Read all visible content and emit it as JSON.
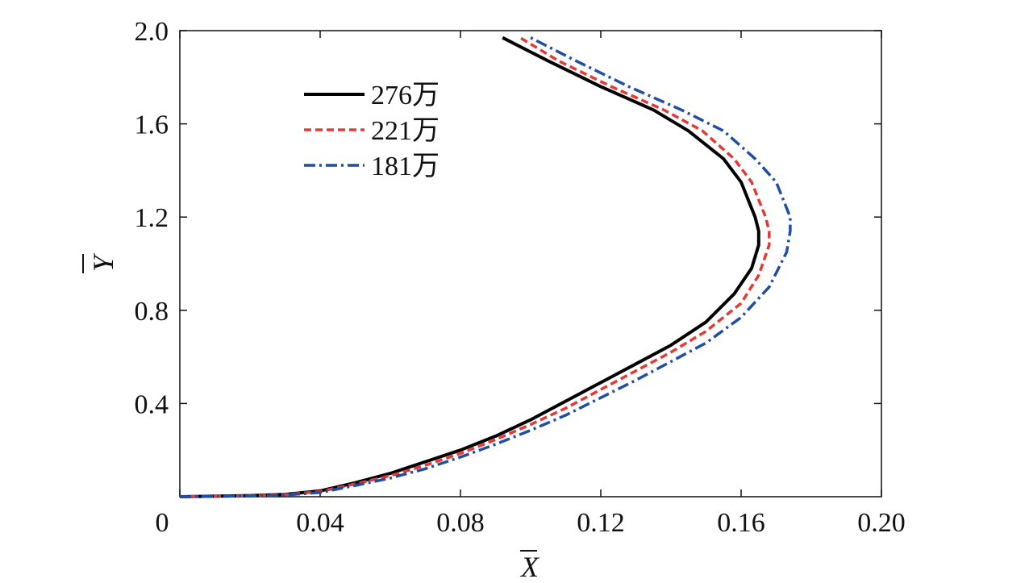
{
  "chart_data": {
    "type": "line",
    "title": "",
    "xlabel": "X",
    "ylabel": "Y",
    "xlim": [
      0,
      0.2
    ],
    "ylim": [
      0,
      2.0
    ],
    "x_ticks": [
      0,
      0.04,
      0.08,
      0.12,
      0.16,
      0.2
    ],
    "x_tick_labels": [
      "0",
      "0.04",
      "0.08",
      "0.12",
      "0.16",
      "0.20"
    ],
    "y_ticks": [
      0.4,
      0.8,
      1.2,
      1.6,
      2.0
    ],
    "y_tick_labels": [
      "0.4",
      "0.8",
      "1.2",
      "1.6",
      "2.0"
    ],
    "grid": false,
    "legend_position": "top-left",
    "series": [
      {
        "name": "276万",
        "color": "#000000",
        "style": "solid",
        "points": [
          [
            0.0,
            0.0
          ],
          [
            0.02,
            0.005
          ],
          [
            0.03,
            0.01
          ],
          [
            0.04,
            0.025
          ],
          [
            0.05,
            0.06
          ],
          [
            0.06,
            0.1
          ],
          [
            0.07,
            0.15
          ],
          [
            0.08,
            0.2
          ],
          [
            0.09,
            0.26
          ],
          [
            0.1,
            0.33
          ],
          [
            0.11,
            0.41
          ],
          [
            0.12,
            0.49
          ],
          [
            0.13,
            0.57
          ],
          [
            0.14,
            0.65
          ],
          [
            0.15,
            0.75
          ],
          [
            0.158,
            0.87
          ],
          [
            0.163,
            0.98
          ],
          [
            0.165,
            1.08
          ],
          [
            0.165,
            1.14
          ],
          [
            0.164,
            1.2
          ],
          [
            0.16,
            1.35
          ],
          [
            0.155,
            1.45
          ],
          [
            0.145,
            1.57
          ],
          [
            0.135,
            1.66
          ],
          [
            0.12,
            1.76
          ],
          [
            0.105,
            1.87
          ],
          [
            0.092,
            1.97
          ]
        ]
      },
      {
        "name": "221万",
        "color": "#e53935",
        "style": "dashed",
        "points": [
          [
            0.0,
            0.0
          ],
          [
            0.02,
            0.004
          ],
          [
            0.03,
            0.009
          ],
          [
            0.04,
            0.022
          ],
          [
            0.05,
            0.055
          ],
          [
            0.06,
            0.09
          ],
          [
            0.07,
            0.135
          ],
          [
            0.08,
            0.185
          ],
          [
            0.09,
            0.245
          ],
          [
            0.1,
            0.31
          ],
          [
            0.11,
            0.38
          ],
          [
            0.12,
            0.46
          ],
          [
            0.13,
            0.54
          ],
          [
            0.14,
            0.62
          ],
          [
            0.15,
            0.71
          ],
          [
            0.16,
            0.83
          ],
          [
            0.165,
            0.95
          ],
          [
            0.168,
            1.08
          ],
          [
            0.168,
            1.14
          ],
          [
            0.167,
            1.2
          ],
          [
            0.163,
            1.35
          ],
          [
            0.158,
            1.45
          ],
          [
            0.149,
            1.57
          ],
          [
            0.138,
            1.66
          ],
          [
            0.123,
            1.76
          ],
          [
            0.108,
            1.87
          ],
          [
            0.097,
            1.97
          ]
        ]
      },
      {
        "name": "181万",
        "color": "#1f4ea3",
        "style": "dashdot",
        "points": [
          [
            0.0,
            0.0
          ],
          [
            0.02,
            0.003
          ],
          [
            0.03,
            0.007
          ],
          [
            0.04,
            0.018
          ],
          [
            0.05,
            0.048
          ],
          [
            0.06,
            0.08
          ],
          [
            0.07,
            0.12
          ],
          [
            0.08,
            0.17
          ],
          [
            0.09,
            0.225
          ],
          [
            0.1,
            0.285
          ],
          [
            0.11,
            0.35
          ],
          [
            0.12,
            0.425
          ],
          [
            0.13,
            0.5
          ],
          [
            0.14,
            0.58
          ],
          [
            0.15,
            0.66
          ],
          [
            0.16,
            0.77
          ],
          [
            0.168,
            0.9
          ],
          [
            0.173,
            1.05
          ],
          [
            0.174,
            1.14
          ],
          [
            0.174,
            1.2
          ],
          [
            0.17,
            1.35
          ],
          [
            0.164,
            1.45
          ],
          [
            0.155,
            1.57
          ],
          [
            0.143,
            1.66
          ],
          [
            0.128,
            1.76
          ],
          [
            0.113,
            1.87
          ],
          [
            0.1,
            1.97
          ]
        ]
      }
    ]
  }
}
